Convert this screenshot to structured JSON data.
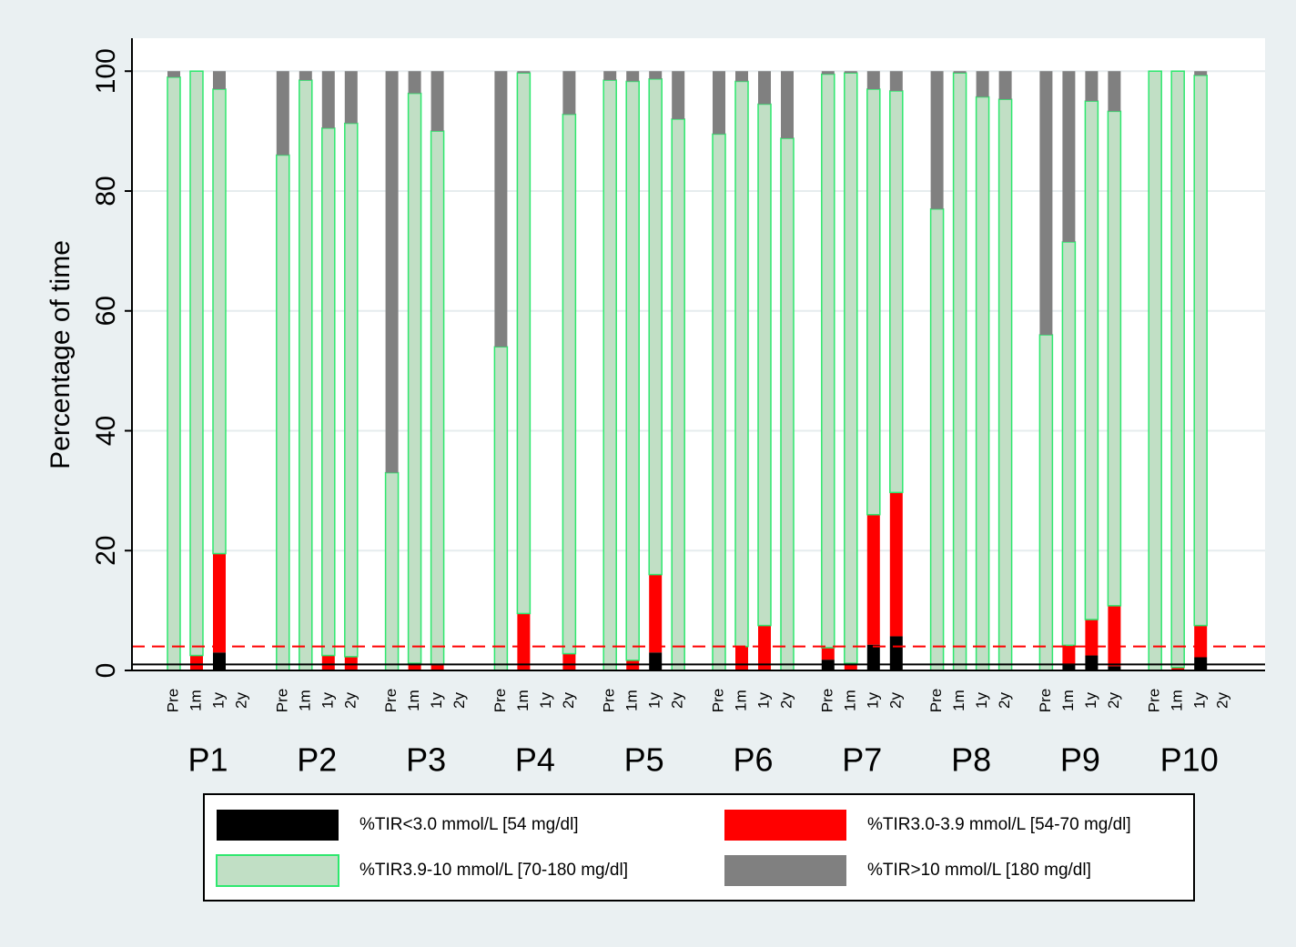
{
  "chart_data": {
    "type": "stacked_bar",
    "ylabel": "Percentage of time",
    "ylim": [
      0,
      105.5
    ],
    "yticks": [
      0,
      20,
      40,
      60,
      80,
      100
    ],
    "grid": true,
    "groups": [
      "P1",
      "P2",
      "P3",
      "P4",
      "P5",
      "P6",
      "P7",
      "P8",
      "P9",
      "P10"
    ],
    "timepoints": [
      "Pre",
      "1m",
      "1y",
      "2y"
    ],
    "reference_lines": [
      {
        "value": 1,
        "color": "#000000",
        "dashed": false
      },
      {
        "value": 4,
        "color": "#ff0000",
        "dashed": true
      }
    ],
    "series": [
      {
        "name": "%TIR<3.0 mmol/L [54 mg/dl]",
        "color": "#000000",
        "values": [
          [
            0,
            0,
            3,
            null
          ],
          [
            0,
            0,
            0,
            0
          ],
          [
            0,
            0,
            0,
            null
          ],
          [
            0,
            0,
            null,
            0
          ],
          [
            0,
            0,
            3,
            0
          ],
          [
            0,
            0,
            0,
            0
          ],
          [
            1.8,
            0,
            4.3,
            5.7
          ],
          [
            0,
            0,
            0,
            0
          ],
          [
            0,
            1,
            2.5,
            0.7
          ],
          [
            0,
            0,
            2.2,
            null
          ]
        ]
      },
      {
        "name": "%TIR3.0-3.9 mmol/L [54-70 mg/dl]",
        "color": "#ff0000",
        "values": [
          [
            0,
            2.5,
            16.5,
            null
          ],
          [
            0,
            0,
            2.5,
            2.3
          ],
          [
            0,
            1.2,
            1,
            null
          ],
          [
            0,
            9.5,
            null,
            2.8
          ],
          [
            0,
            1.7,
            13,
            0
          ],
          [
            0,
            4,
            7.5,
            0
          ],
          [
            2,
            1.2,
            21.7,
            24
          ],
          [
            0,
            0,
            0,
            0
          ],
          [
            0,
            3.2,
            6,
            10.1
          ],
          [
            0,
            0.5,
            5.3,
            null
          ]
        ]
      },
      {
        "name": "%TIR3.9-10 mmol/L [70-180 mg/dl]",
        "color": "#c1dfc5",
        "edgecolor": "#2ee86e",
        "values": [
          [
            99,
            97.5,
            77.5,
            null
          ],
          [
            86,
            98.5,
            88,
            89
          ],
          [
            33,
            95.1,
            89,
            null
          ],
          [
            54,
            90.2,
            null,
            90
          ],
          [
            98.5,
            96.6,
            82.7,
            92
          ],
          [
            89.5,
            94.3,
            87,
            88.8
          ],
          [
            95.7,
            98.5,
            71,
            67
          ],
          [
            77,
            99.7,
            95.7,
            95.3
          ],
          [
            56,
            67.3,
            86.5,
            82.5
          ],
          [
            100,
            99.5,
            91.8,
            null
          ]
        ]
      },
      {
        "name": "%TIR>10 mmol/L [180 mg/dl]",
        "color": "#808080",
        "values": [
          [
            1,
            0,
            3,
            null
          ],
          [
            14,
            1.5,
            9.5,
            8.7
          ],
          [
            67,
            3.7,
            10,
            null
          ],
          [
            46,
            0.3,
            null,
            7.2
          ],
          [
            1.5,
            1.7,
            1.3,
            8
          ],
          [
            10.5,
            1.7,
            5.5,
            11.2
          ],
          [
            0.5,
            0.3,
            3,
            3.3
          ],
          [
            23,
            0.3,
            4.3,
            4.7
          ],
          [
            44,
            28.5,
            5,
            6.7
          ],
          [
            0,
            0,
            0.7,
            null
          ]
        ]
      }
    ]
  }
}
